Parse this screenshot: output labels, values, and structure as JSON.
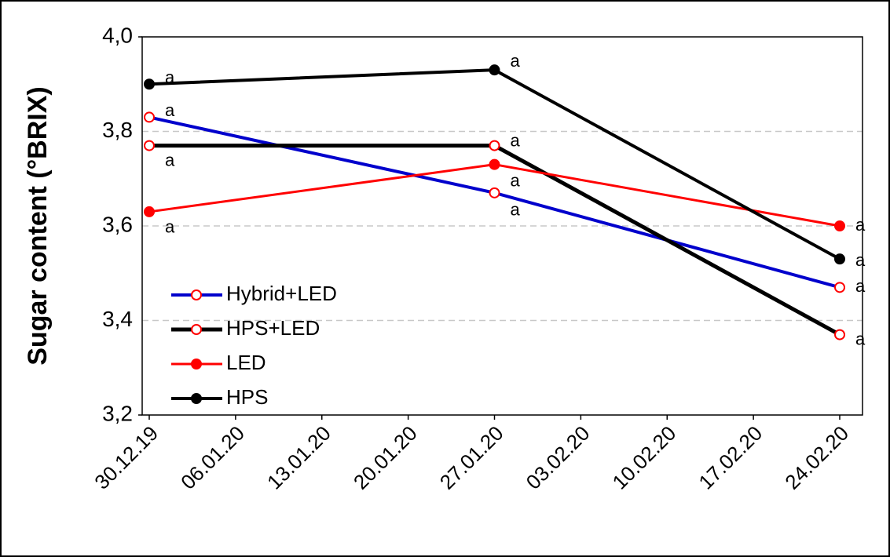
{
  "chart_data": {
    "type": "line",
    "y_label": "Sugar content (°BRIX)",
    "categories": [
      "30.12.19",
      "06.01.20",
      "13.01.20",
      "20.01.20",
      "27.01.20",
      "03.02.20",
      "10.02.20",
      "17.02.20",
      "24.02.20"
    ],
    "ylim": [
      3.2,
      4.0
    ],
    "yticks": [
      {
        "value": 3.2,
        "label": "3,2"
      },
      {
        "value": 3.4,
        "label": "3,4"
      },
      {
        "value": 3.6,
        "label": "3,6"
      },
      {
        "value": 3.8,
        "label": "3,8"
      },
      {
        "value": 4.0,
        "label": "4,0"
      }
    ],
    "grid": true,
    "legend": "lower left",
    "series": [
      {
        "name": "Hybrid+LED",
        "color": "#0000cc",
        "marker_face": "#ffffff",
        "marker_edge": "#ff0000",
        "x": [
          "30.12.19",
          "27.01.20",
          "24.02.20"
        ],
        "values": [
          3.83,
          3.67,
          3.47
        ],
        "annotations": [
          "a",
          "a",
          "a"
        ]
      },
      {
        "name": "HPS+LED",
        "color": "#000000",
        "marker_face": "#ffffff",
        "marker_edge": "#ff0000",
        "x": [
          "30.12.19",
          "27.01.20",
          "24.02.20"
        ],
        "values": [
          3.77,
          3.77,
          3.37
        ],
        "annotations": [
          "a",
          "a",
          "a"
        ]
      },
      {
        "name": "LED",
        "color": "#ff0000",
        "marker_face": "#ff0000",
        "marker_edge": "#ff0000",
        "x": [
          "30.12.19",
          "27.01.20",
          "24.02.20"
        ],
        "values": [
          3.63,
          3.73,
          3.6
        ],
        "annotations": [
          "a",
          "a",
          "a"
        ]
      },
      {
        "name": "HPS",
        "color": "#000000",
        "marker_face": "#000000",
        "marker_edge": "#000000",
        "x": [
          "30.12.19",
          "27.01.20",
          "24.02.20"
        ],
        "values": [
          3.9,
          3.93,
          3.53
        ],
        "annotations": [
          "a",
          "a",
          "a"
        ]
      }
    ]
  }
}
